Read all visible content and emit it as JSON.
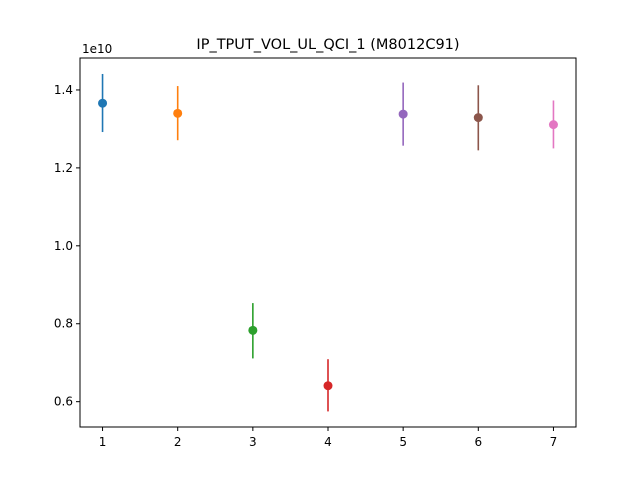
{
  "chart_data": {
    "type": "scatter",
    "title": "IP_TPUT_VOL_UL_QCI_1 (M8012C91)",
    "xlabel": "",
    "ylabel": "",
    "y_offset_label": "1e10",
    "xlim": [
      0.7,
      7.3
    ],
    "ylim": [
      0.535,
      1.482
    ],
    "grid": false,
    "x_ticks": [
      1,
      2,
      3,
      4,
      5,
      6,
      7
    ],
    "x_tick_labels": [
      "1",
      "2",
      "3",
      "4",
      "5",
      "6",
      "7"
    ],
    "y_ticks": [
      0.6,
      0.8,
      1.0,
      1.2,
      1.4
    ],
    "y_tick_labels": [
      "0.6",
      "0.8",
      "1.0",
      "1.2",
      "1.4"
    ],
    "points": [
      {
        "x": 1,
        "y": 1.366,
        "err_low": 1.292,
        "err_high": 1.441,
        "color": "#1f77b4"
      },
      {
        "x": 2,
        "y": 1.34,
        "err_low": 1.271,
        "err_high": 1.41,
        "color": "#ff7f0e"
      },
      {
        "x": 3,
        "y": 0.783,
        "err_low": 0.711,
        "err_high": 0.853,
        "color": "#2ca02c"
      },
      {
        "x": 4,
        "y": 0.641,
        "err_low": 0.575,
        "err_high": 0.709,
        "color": "#d62728"
      },
      {
        "x": 5,
        "y": 1.338,
        "err_low": 1.257,
        "err_high": 1.419,
        "color": "#9467bd"
      },
      {
        "x": 6,
        "y": 1.329,
        "err_low": 1.245,
        "err_high": 1.412,
        "color": "#8c564b"
      },
      {
        "x": 7,
        "y": 1.311,
        "err_low": 1.25,
        "err_high": 1.373,
        "color": "#e377c2"
      }
    ]
  }
}
